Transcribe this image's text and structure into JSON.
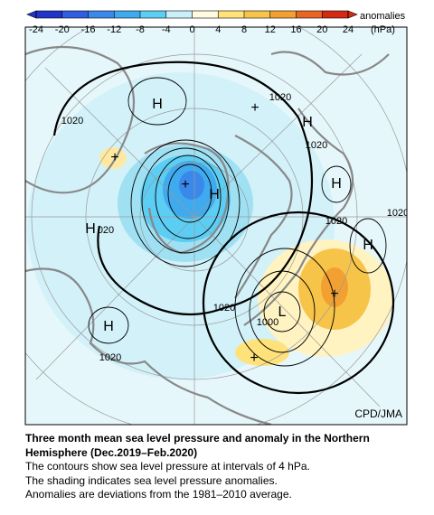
{
  "colorbar": {
    "ticks": [
      -24,
      -20,
      -16,
      -12,
      -8,
      -4,
      0,
      4,
      8,
      12,
      16,
      20,
      24
    ],
    "colors": [
      "#2233cc",
      "#2f5fe0",
      "#3a88ea",
      "#40aaee",
      "#5ccdf3",
      "#c9eff9",
      "#fffbe0",
      "#ffe27a",
      "#f7c44a",
      "#f2a032",
      "#e86524",
      "#d42a14"
    ],
    "label": "anomalies",
    "unit": "(hPa)"
  },
  "map": {
    "labels": [
      "H",
      "+",
      "1020",
      "H",
      "1020",
      "1020",
      "+",
      "H",
      "H",
      "+",
      "1020",
      "1020",
      "H",
      "020",
      "H",
      "+",
      "1020",
      "L",
      "1000",
      "H",
      "1020",
      "+"
    ],
    "credit": "CPD/JMA"
  },
  "caption": {
    "title": "Three month mean sea level pressure and anomaly in the Northern Hemisphere (Dec.2019–Feb.2020)",
    "lines": [
      "The contours show sea level pressure at intervals of 4 hPa.",
      "The shading indicates sea level pressure anomalies.",
      "Anomalies are deviations from the 1981–2010 average."
    ]
  }
}
